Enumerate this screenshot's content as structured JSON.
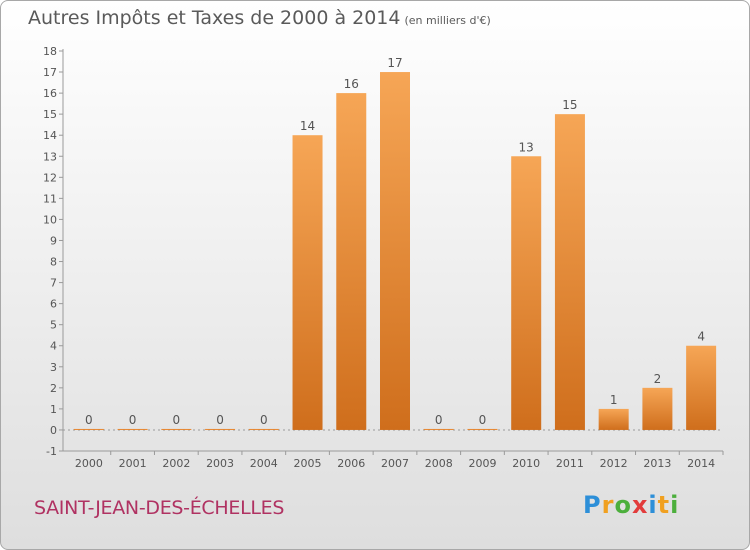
{
  "title": {
    "main": "Autres Impôts et Taxes de 2000 à 2014",
    "unit": "(en milliers d'€)"
  },
  "footer": {
    "commune": "SAINT-JEAN-DES-ÉCHELLES"
  },
  "brand": {
    "letters": [
      "P",
      "r",
      "o",
      "x",
      "i",
      "t",
      "i"
    ],
    "colors": [
      "#2d8fd8",
      "#f0a020",
      "#4caf3c",
      "#e23b3b",
      "#2d8fd8",
      "#f0a020",
      "#4caf3c"
    ]
  },
  "chart_data": {
    "type": "bar",
    "categories": [
      "2000",
      "2001",
      "2002",
      "2003",
      "2004",
      "2005",
      "2006",
      "2007",
      "2008",
      "2009",
      "2010",
      "2011",
      "2012",
      "2013",
      "2014"
    ],
    "values": [
      0,
      0,
      0,
      0,
      0,
      14,
      16,
      17,
      0,
      0,
      13,
      15,
      1,
      2,
      4
    ],
    "data_labels": [
      "0",
      "0",
      "0",
      "0",
      "0",
      "14",
      "16",
      "17",
      "0",
      "0",
      "13",
      "15",
      "1",
      "2",
      "4"
    ],
    "y_ticks": [
      -1,
      0,
      1,
      2,
      3,
      4,
      5,
      6,
      7,
      8,
      9,
      10,
      11,
      12,
      13,
      14,
      15,
      16,
      17,
      18
    ],
    "ylim": [
      -1,
      18
    ],
    "grid": false,
    "legend": "none",
    "bar_color": "#e8862e"
  }
}
